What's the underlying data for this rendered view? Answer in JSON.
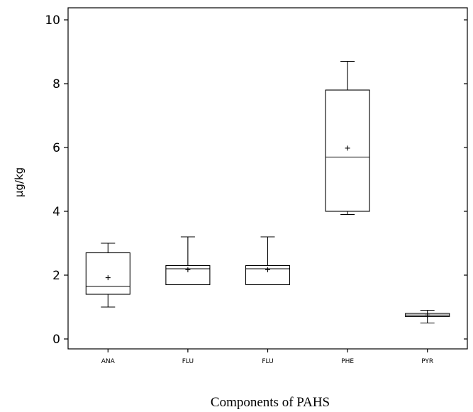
{
  "chart_data": {
    "type": "box",
    "xlabel": "Components of PAHS",
    "ylabel": "µg/kg",
    "ylim": [
      0,
      10
    ],
    "yticks": [
      0,
      2,
      4,
      6,
      8,
      10
    ],
    "grid": false,
    "categories": [
      "ANA",
      "FLU",
      "FLU",
      "PHE",
      "PYR"
    ],
    "boxes": [
      {
        "min": 1.0,
        "q1": 1.4,
        "median": 1.65,
        "q3": 2.7,
        "max": 3.0,
        "mean": 1.92
      },
      {
        "min": 1.7,
        "q1": 1.7,
        "median": 2.2,
        "q3": 2.3,
        "max": 3.2,
        "mean": 2.17
      },
      {
        "min": 1.7,
        "q1": 1.7,
        "median": 2.2,
        "q3": 2.3,
        "max": 3.2,
        "mean": 2.17
      },
      {
        "min": 3.9,
        "q1": 4.0,
        "median": 5.7,
        "q3": 7.8,
        "max": 8.7,
        "mean": 5.98
      },
      {
        "min": 0.5,
        "q1": 0.7,
        "median": 0.75,
        "q3": 0.8,
        "max": 0.9,
        "mean": 0.75
      }
    ]
  }
}
